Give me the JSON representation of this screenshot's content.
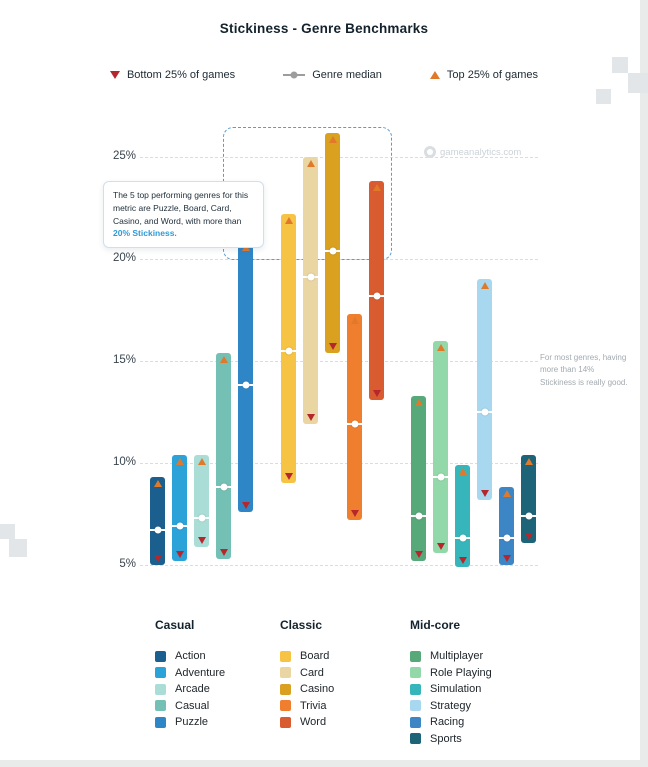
{
  "title": "Stickiness - Genre Benchmarks",
  "legend": {
    "bottom": "Bottom 25% of games",
    "median": "Genre median",
    "top": "Top 25% of games"
  },
  "watermark": "gameanalytics.com",
  "callout": {
    "text": "The 5 top performing genres for this metric are Puzzle, Board, Card, Casino, and Word, with more than ",
    "highlight": "20% Stickiness."
  },
  "side_note": "For most genres, having more than 14% Stickiness is really good.",
  "colors": {
    "bottom_marker": "#b5272d",
    "median_marker": "#9d9d9d",
    "top_marker": "#e0792a",
    "highlight_blue": "#2e9ad6",
    "dashed_box": "#5b9bd0"
  },
  "chart_data": {
    "type": "bar",
    "variant": "floating-range-bars",
    "title": "Stickiness - Genre Benchmarks",
    "unit": "%",
    "y_ticks": [
      "5%",
      "10%",
      "15%",
      "20%",
      "25%"
    ],
    "ylim": [
      4,
      27
    ],
    "grid": "dashed-horizontal",
    "markers": {
      "bottom": "Bottom 25% of games",
      "median": "Genre median",
      "top": "Top 25% of games"
    },
    "groups": [
      {
        "name": "Casual",
        "bars": [
          {
            "label": "Action",
            "color": "#1a5f8d",
            "bottom": 5.0,
            "median": 6.7,
            "top": 9.3
          },
          {
            "label": "Adventure",
            "color": "#2ba2d8",
            "bottom": 5.2,
            "median": 6.9,
            "top": 10.4
          },
          {
            "label": "Arcade",
            "color": "#abddd7",
            "bottom": 5.9,
            "median": 7.3,
            "top": 10.4
          },
          {
            "label": "Casual",
            "color": "#74c0b5",
            "bottom": 5.3,
            "median": 8.8,
            "top": 15.4
          },
          {
            "label": "Puzzle",
            "color": "#2f86c7",
            "bottom": 7.6,
            "median": 13.8,
            "top": 20.9
          }
        ]
      },
      {
        "name": "Classic",
        "bars": [
          {
            "label": "Board",
            "color": "#f6c344",
            "bottom": 9.0,
            "median": 15.5,
            "top": 22.2
          },
          {
            "label": "Card",
            "color": "#ead6a2",
            "bottom": 11.9,
            "median": 19.1,
            "top": 25.0
          },
          {
            "label": "Casino",
            "color": "#d9a11f",
            "bottom": 15.4,
            "median": 20.4,
            "top": 26.2
          },
          {
            "label": "Trivia",
            "color": "#f07e2f",
            "bottom": 7.2,
            "median": 11.9,
            "top": 17.3
          },
          {
            "label": "Word",
            "color": "#d95b30",
            "bottom": 13.1,
            "median": 18.2,
            "top": 23.8
          }
        ]
      },
      {
        "name": "Mid-core",
        "bars": [
          {
            "label": "Multiplayer",
            "color": "#58a97a",
            "bottom": 5.2,
            "median": 7.4,
            "top": 13.3
          },
          {
            "label": "Role Playing",
            "color": "#92d8a9",
            "bottom": 5.6,
            "median": 9.3,
            "top": 16.0
          },
          {
            "label": "Simulation",
            "color": "#36b6bb",
            "bottom": 4.9,
            "median": 6.3,
            "top": 9.9
          },
          {
            "label": "Strategy",
            "color": "#a8d8f0",
            "bottom": 8.2,
            "median": 12.5,
            "top": 19.0
          },
          {
            "label": "Racing",
            "color": "#3d86c5",
            "bottom": 5.0,
            "median": 6.3,
            "top": 8.8
          },
          {
            "label": "Sports",
            "color": "#1d6478",
            "bottom": 6.1,
            "median": 7.4,
            "top": 10.4
          }
        ]
      }
    ]
  }
}
